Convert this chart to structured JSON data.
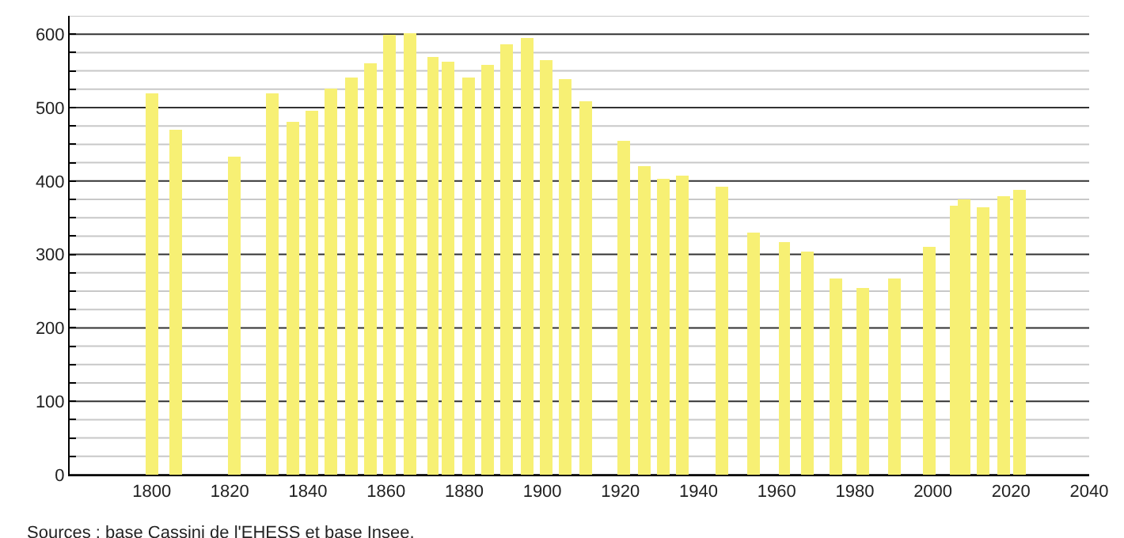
{
  "chart_data": {
    "type": "bar",
    "x": [
      1800,
      1806,
      1821,
      1831,
      1836,
      1841,
      1846,
      1851,
      1856,
      1861,
      1866,
      1872,
      1876,
      1881,
      1886,
      1891,
      1896,
      1901,
      1906,
      1911,
      1921,
      1926,
      1931,
      1936,
      1946,
      1954,
      1962,
      1968,
      1975,
      1982,
      1990,
      1999,
      2006,
      2008,
      2013,
      2018,
      2022
    ],
    "values": [
      519,
      470,
      434,
      520,
      480,
      495,
      525,
      540,
      560,
      600,
      601,
      568,
      562,
      542,
      558,
      586,
      594,
      564,
      538,
      508,
      454,
      421,
      402,
      408,
      393,
      329,
      316,
      304,
      267,
      255,
      267,
      311,
      366,
      376,
      365,
      380,
      389
    ],
    "color": "#f7f074",
    "xlim": [
      1779,
      2040
    ],
    "xticks": [
      1800,
      1820,
      1840,
      1860,
      1880,
      1900,
      1920,
      1940,
      1960,
      1980,
      2000,
      2020,
      2040
    ],
    "ylim": [
      0,
      625
    ],
    "yticks": [
      0,
      {
        "value": 25,
        "label": null
      },
      {
        "value": 50,
        "label": null
      },
      {
        "value": 75,
        "label": null
      },
      100,
      {
        "value": 125,
        "label": null
      },
      {
        "value": 150,
        "label": null
      },
      {
        "value": 175,
        "label": null
      },
      200,
      {
        "value": 225,
        "label": null
      },
      {
        "value": 250,
        "label": null
      },
      {
        "value": 275,
        "label": null
      },
      300,
      {
        "value": 325,
        "label": null
      },
      {
        "value": 350,
        "label": null
      },
      {
        "value": 375,
        "label": null
      },
      400,
      {
        "value": 425,
        "label": null
      },
      {
        "value": 450,
        "label": null
      },
      {
        "value": 475,
        "label": null
      },
      500,
      {
        "value": 525,
        "label": null
      },
      {
        "value": 550,
        "label": null
      },
      {
        "value": 575,
        "label": null
      },
      600,
      {
        "value": 625,
        "label": null
      }
    ],
    "grid": "y",
    "annotations": [
      "Sources : base Cassini de l'EHESS et base Insee."
    ]
  }
}
